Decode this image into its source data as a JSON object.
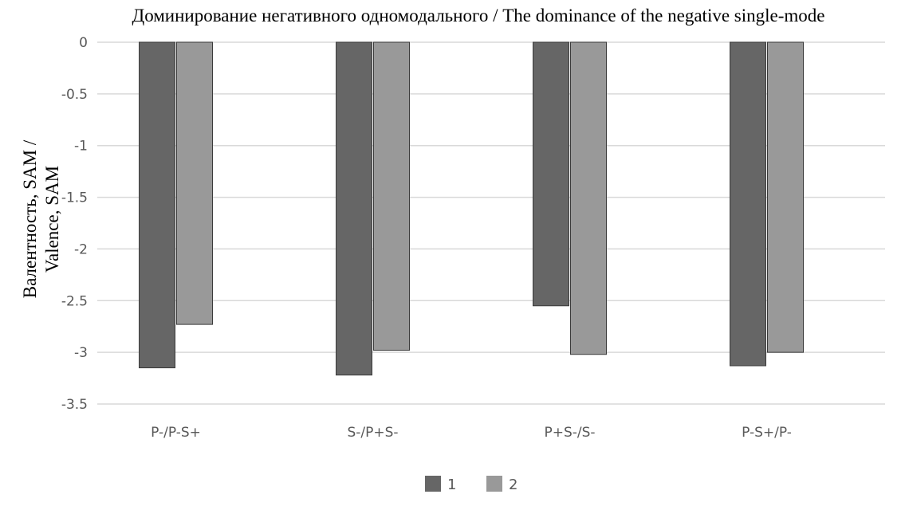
{
  "chart_data": {
    "type": "bar",
    "title": "Доминирование негативного одномодального / The dominance of the negative single-mode",
    "ylabel": [
      "Валентность, SAM /",
      "Valence, SAM"
    ],
    "xlabel": "",
    "ylim": [
      -3.5,
      0
    ],
    "yticks": [
      0,
      -0.5,
      -1,
      -1.5,
      -2,
      -2.5,
      -3,
      -3.5
    ],
    "ytick_labels": [
      "0",
      "-0.5",
      "-1",
      "-1.5",
      "-2",
      "-2.5",
      "-3",
      "-3.5"
    ],
    "grid": true,
    "legend_position": "bottom",
    "categories": [
      "P-/P-S+",
      "S-/P+S-",
      "P+S-/S-",
      "P-S+/P-"
    ],
    "series": [
      {
        "name": "1",
        "values": [
          -3.15,
          -3.22,
          -2.55,
          -3.13
        ],
        "color": "#666666"
      },
      {
        "name": "2",
        "values": [
          -2.73,
          -2.98,
          -3.02,
          -3.0
        ],
        "color": "#999999"
      }
    ]
  }
}
